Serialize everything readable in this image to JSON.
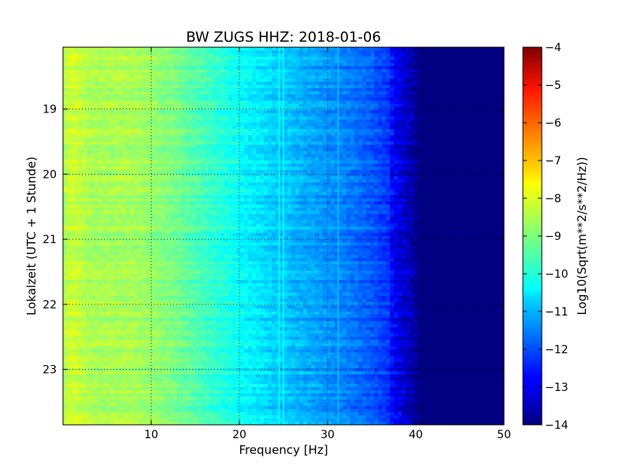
{
  "chart_data": {
    "type": "heatmap",
    "title": "BW ZUGS HHZ: 2018-01-06",
    "xlabel": "Frequency [Hz]",
    "ylabel": "Lokalzeit (UTC + 1 Stunde)",
    "xlim": [
      0,
      50
    ],
    "ylim_hours": [
      18.05,
      23.85
    ],
    "y_inverted": true,
    "x_ticks": [
      10,
      20,
      30,
      40,
      50
    ],
    "y_ticks": [
      19,
      20,
      21,
      22,
      23
    ],
    "grid": true,
    "grid_style": "dotted",
    "colormap": "jet",
    "colorbar": {
      "label": "Log10(Sqrt(m**2/s**2/Hz))",
      "range": [
        -14,
        -4
      ],
      "ticks": [
        -4,
        -5,
        -6,
        -7,
        -8,
        -9,
        -10,
        -11,
        -12,
        -13,
        -14
      ]
    },
    "spectrum_profile": {
      "frequency_hz": [
        0,
        1,
        3,
        8,
        12,
        16,
        20,
        24,
        28,
        32,
        35,
        37,
        38.5,
        40,
        40.5,
        50
      ],
      "level_log10": [
        -8.6,
        -8.2,
        -8.6,
        -8.6,
        -9.0,
        -9.6,
        -10.2,
        -10.7,
        -11.1,
        -11.5,
        -11.9,
        -12.3,
        -12.9,
        -13.4,
        -14.0,
        -14.0
      ]
    },
    "bright_lines_hz": [
      24.5,
      25.0,
      31.2
    ],
    "notes_values": {
      "max_hz_with_signal": 40,
      "background_level": -14
    }
  }
}
